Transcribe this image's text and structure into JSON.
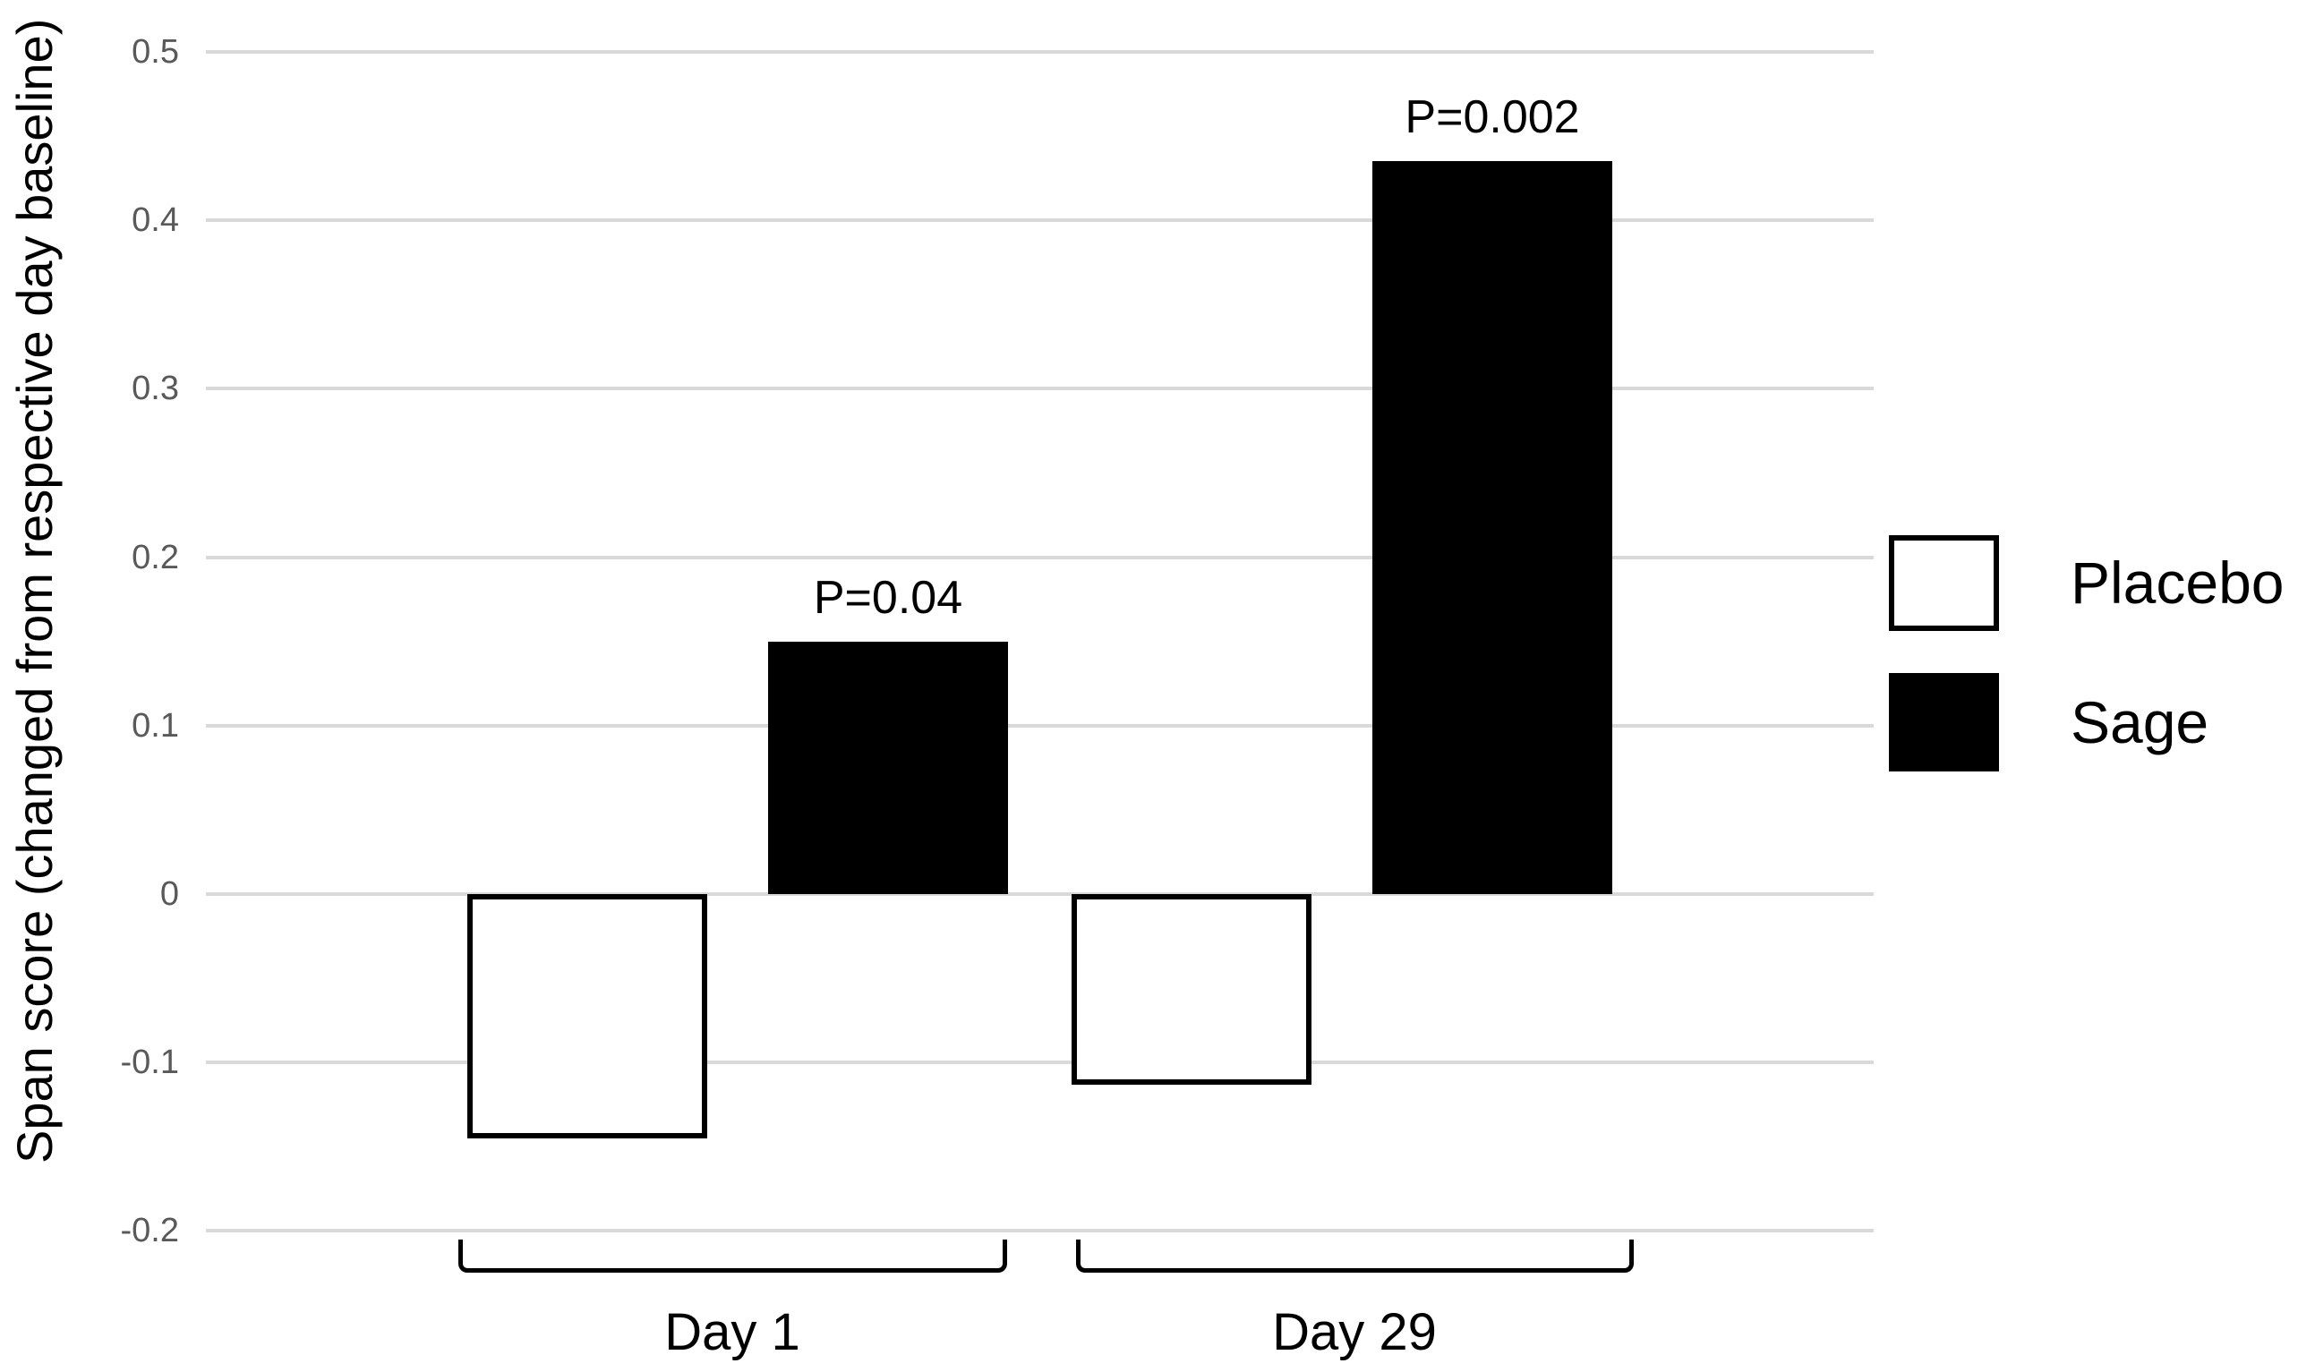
{
  "chart_data": {
    "type": "bar",
    "title": "",
    "ylabel": "Span score (changed from respective day baseline)",
    "xlabel": "",
    "categories": [
      "Day 1",
      "Day 29"
    ],
    "series": [
      {
        "name": "Placebo",
        "values": [
          -0.145,
          -0.113
        ],
        "fill": "#FFFFFF",
        "border": "#000000"
      },
      {
        "name": "Sage",
        "values": [
          0.15,
          0.435
        ],
        "fill": "#000000",
        "border": "#000000"
      }
    ],
    "annotations": [
      {
        "text": "P=0.04",
        "category": "Day 1",
        "series": "Sage"
      },
      {
        "text": "P=0.002",
        "category": "Day 29",
        "series": "Sage"
      }
    ],
    "yticks": [
      "0.5",
      "0.4",
      "0.3",
      "0.2",
      "0.1",
      "0",
      "-0.1",
      "-0.2"
    ],
    "ylim": [
      -0.25,
      0.52
    ],
    "grid": true,
    "legend_position": "right",
    "colors": {
      "gridline": "#D9D9D9",
      "tick_label": "#595959",
      "text": "#000000",
      "sage_fill": "#000000",
      "placebo_fill": "#FFFFFF"
    }
  }
}
